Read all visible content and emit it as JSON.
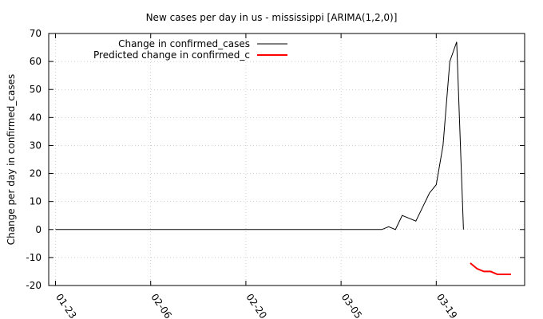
{
  "chart_data": {
    "type": "line",
    "title": "New cases per day in us - mississippi [ARIMA(1,2,0)]",
    "xlabel": "",
    "ylabel": "Change per day in confirmed_cases",
    "x_range": [
      "2020-01-22",
      "2020-04-01"
    ],
    "ylim": [
      -20,
      70
    ],
    "y_ticks": [
      -20,
      -10,
      0,
      10,
      20,
      30,
      40,
      50,
      60,
      70
    ],
    "x_ticks": [
      {
        "date": "2020-01-23",
        "label": "01-23"
      },
      {
        "date": "2020-02-06",
        "label": "02-06"
      },
      {
        "date": "2020-02-20",
        "label": "02-20"
      },
      {
        "date": "2020-03-05",
        "label": "03-05"
      },
      {
        "date": "2020-03-19",
        "label": "03-19"
      }
    ],
    "grid": true,
    "legend_position": "top-left",
    "series": [
      {
        "name": "Change in confirmed_cases",
        "color": "#000000",
        "points": [
          [
            "2020-01-23",
            0
          ],
          [
            "2020-03-11",
            0
          ],
          [
            "2020-03-12",
            1
          ],
          [
            "2020-03-13",
            0
          ],
          [
            "2020-03-14",
            5
          ],
          [
            "2020-03-15",
            4
          ],
          [
            "2020-03-16",
            3
          ],
          [
            "2020-03-17",
            8
          ],
          [
            "2020-03-18",
            13
          ],
          [
            "2020-03-19",
            16
          ],
          [
            "2020-03-20",
            30
          ],
          [
            "2020-03-21",
            60
          ],
          [
            "2020-03-22",
            67
          ],
          [
            "2020-03-23",
            0
          ]
        ]
      },
      {
        "name": "Predicted change in confirmed_c",
        "color": "#ff0000",
        "points": [
          [
            "2020-03-24",
            -12
          ],
          [
            "2020-03-25",
            -14
          ],
          [
            "2020-03-26",
            -15
          ],
          [
            "2020-03-27",
            -15
          ],
          [
            "2020-03-28",
            -16
          ],
          [
            "2020-03-29",
            -16
          ],
          [
            "2020-03-30",
            -16
          ]
        ]
      }
    ]
  }
}
